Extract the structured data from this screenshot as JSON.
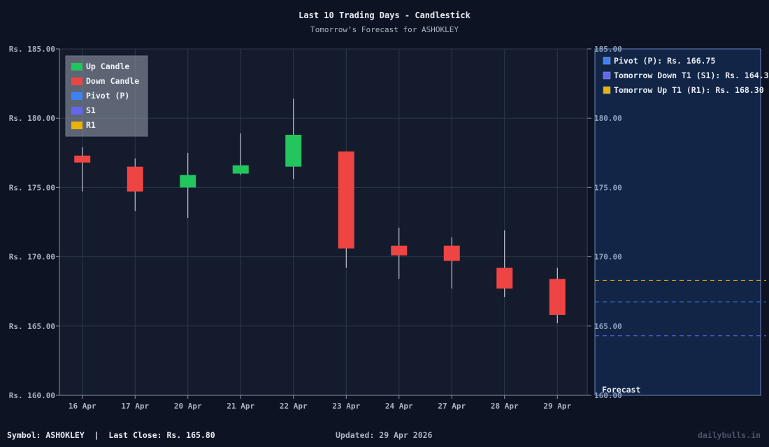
{
  "header": {
    "title": "Last 10 Trading Days - Candlestick",
    "subtitle": "Tomorrow’s Forecast for ASHOKLEY"
  },
  "legend": {
    "items": [
      {
        "label": "Up Candle",
        "color": "#22c55e"
      },
      {
        "label": "Down Candle",
        "color": "#ef4444"
      },
      {
        "label": "Pivot (P)",
        "color": "#3b82f6"
      },
      {
        "label": "S1",
        "color": "#6366f1"
      },
      {
        "label": "R1",
        "color": "#eab308"
      }
    ]
  },
  "forecast_panel": {
    "label": "Forecast",
    "items": [
      {
        "label": "Pivot (P): Rs. 166.75",
        "color": "#3b82f6",
        "value": 166.75
      },
      {
        "label": "Tomorrow Down T1 (S1): Rs. 164.3",
        "color": "#6366f1",
        "value": 164.3
      },
      {
        "label": "Tomorrow Up T1 (R1): Rs. 168.30",
        "color": "#eab308",
        "value": 168.3
      }
    ]
  },
  "footer": {
    "left": "Symbol: ASHOKLEY  |  Last Close: Rs. 165.80",
    "middle": "Updated: 29 Apr 2026",
    "right": "dailybulls.in"
  },
  "chart_data": {
    "type": "candlestick",
    "title": "Last 10 Trading Days - Candlestick",
    "subtitle": "Tomorrow’s Forecast for ASHOKLEY",
    "xlabel": "",
    "ylabel": "",
    "ylim": [
      160,
      185
    ],
    "y_ticks": [
      "Rs. 160.00",
      "Rs. 165.00",
      "Rs. 170.00",
      "Rs. 175.00",
      "Rs. 180.00",
      "Rs. 185.00"
    ],
    "y_ticks_right": [
      "160.00",
      "165.00",
      "170.00",
      "175.00",
      "180.00",
      "185.00"
    ],
    "grid": true,
    "legend_position": "top-left",
    "categories": [
      "16 Apr",
      "17 Apr",
      "20 Apr",
      "21 Apr",
      "22 Apr",
      "23 Apr",
      "24 Apr",
      "27 Apr",
      "28 Apr",
      "29 Apr"
    ],
    "ohlc": [
      {
        "date": "16 Apr",
        "open": 177.3,
        "high": 177.9,
        "low": 174.7,
        "close": 176.8
      },
      {
        "date": "17 Apr",
        "open": 176.5,
        "high": 177.1,
        "low": 173.3,
        "close": 174.7
      },
      {
        "date": "20 Apr",
        "open": 175.0,
        "high": 177.5,
        "low": 172.8,
        "close": 175.9
      },
      {
        "date": "21 Apr",
        "open": 176.0,
        "high": 178.9,
        "low": 175.9,
        "close": 176.6
      },
      {
        "date": "22 Apr",
        "open": 176.5,
        "high": 181.4,
        "low": 175.6,
        "close": 178.8
      },
      {
        "date": "23 Apr",
        "open": 177.6,
        "high": 177.6,
        "low": 169.2,
        "close": 170.6
      },
      {
        "date": "24 Apr",
        "open": 170.8,
        "high": 172.1,
        "low": 168.4,
        "close": 170.1
      },
      {
        "date": "27 Apr",
        "open": 170.8,
        "high": 171.4,
        "low": 167.7,
        "close": 169.7
      },
      {
        "date": "28 Apr",
        "open": 169.2,
        "high": 171.9,
        "low": 167.1,
        "close": 167.7
      },
      {
        "date": "29 Apr",
        "open": 168.4,
        "high": 169.2,
        "low": 165.2,
        "close": 165.8
      }
    ],
    "forecast_lines": [
      {
        "name": "Pivot (P)",
        "value": 166.75,
        "color": "#3b82f6",
        "style": "dashed"
      },
      {
        "name": "S1",
        "value": 164.3,
        "color": "#6366f1",
        "style": "dashed"
      },
      {
        "name": "R1",
        "value": 168.3,
        "color": "#eab308",
        "style": "dashed"
      }
    ],
    "up_color": "#22c55e",
    "down_color": "#ef4444"
  }
}
